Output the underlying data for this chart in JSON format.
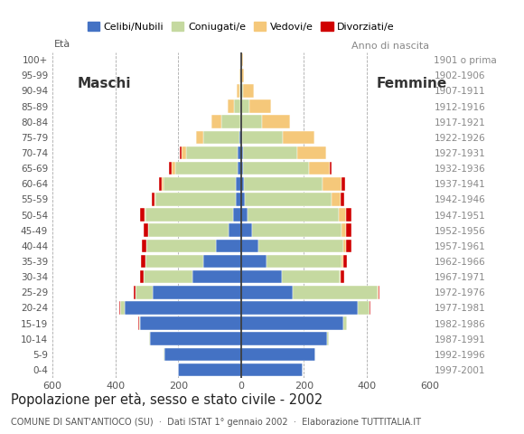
{
  "age_groups": [
    "0-4",
    "5-9",
    "10-14",
    "15-19",
    "20-24",
    "25-29",
    "30-34",
    "35-39",
    "40-44",
    "45-49",
    "50-54",
    "55-59",
    "60-64",
    "65-69",
    "70-74",
    "75-79",
    "80-84",
    "85-89",
    "90-94",
    "95-99",
    "100+"
  ],
  "birth_years": [
    "1997-2001",
    "1992-1996",
    "1987-1991",
    "1982-1986",
    "1977-1981",
    "1972-1976",
    "1967-1971",
    "1962-1966",
    "1957-1961",
    "1952-1956",
    "1947-1951",
    "1942-1946",
    "1937-1941",
    "1932-1936",
    "1927-1931",
    "1922-1926",
    "1917-1921",
    "1912-1916",
    "1907-1911",
    "1902-1906",
    "1901 o prima"
  ],
  "males": {
    "celibe": [
      200,
      245,
      290,
      320,
      370,
      280,
      155,
      120,
      80,
      40,
      25,
      18,
      17,
      10,
      10,
      4,
      3,
      2,
      1,
      1,
      0
    ],
    "coniugato": [
      0,
      1,
      2,
      5,
      15,
      55,
      155,
      185,
      220,
      255,
      280,
      255,
      230,
      200,
      165,
      115,
      60,
      20,
      5,
      2,
      0
    ],
    "vedovo": [
      0,
      0,
      0,
      0,
      0,
      0,
      0,
      0,
      1,
      1,
      2,
      3,
      5,
      10,
      15,
      25,
      30,
      20,
      8,
      2,
      0
    ],
    "divorziato": [
      0,
      0,
      0,
      1,
      2,
      5,
      10,
      12,
      14,
      14,
      14,
      8,
      8,
      8,
      5,
      0,
      0,
      0,
      0,
      0,
      0
    ]
  },
  "females": {
    "celibe": [
      195,
      235,
      275,
      325,
      370,
      165,
      130,
      80,
      55,
      35,
      20,
      12,
      10,
      7,
      5,
      3,
      2,
      1,
      1,
      0,
      0
    ],
    "coniugato": [
      0,
      1,
      3,
      12,
      40,
      270,
      185,
      240,
      270,
      285,
      290,
      275,
      250,
      210,
      175,
      130,
      65,
      25,
      5,
      0,
      0
    ],
    "vedovo": [
      0,
      0,
      0,
      0,
      0,
      1,
      2,
      5,
      10,
      15,
      25,
      30,
      60,
      65,
      90,
      100,
      90,
      70,
      35,
      10,
      5
    ],
    "divorziato": [
      0,
      0,
      0,
      1,
      2,
      5,
      10,
      13,
      15,
      15,
      15,
      10,
      10,
      5,
      2,
      0,
      0,
      0,
      0,
      0,
      0
    ]
  },
  "colors": {
    "celibe": "#4472c4",
    "coniugato": "#c5d9a0",
    "vedovo": "#f5c87a",
    "divorziato": "#d00000"
  },
  "legend_labels": [
    "Celibi/Nubili",
    "Coniugati/e",
    "Vedovi/e",
    "Divorziati/e"
  ],
  "title": "Popolazione per età, sesso e stato civile - 2002",
  "subtitle": "COMUNE DI SANT'ANTIOCO (SU)  ·  Dati ISTAT 1° gennaio 2002  ·  Elaborazione TUTTITALIA.IT",
  "xlim": 600,
  "xlabel_left": "Maschi",
  "xlabel_right": "Femmine",
  "ylabel_left": "Età",
  "ylabel_right": "Anno di nascita",
  "background_color": "#ffffff",
  "grid_color": "#aaaaaa"
}
